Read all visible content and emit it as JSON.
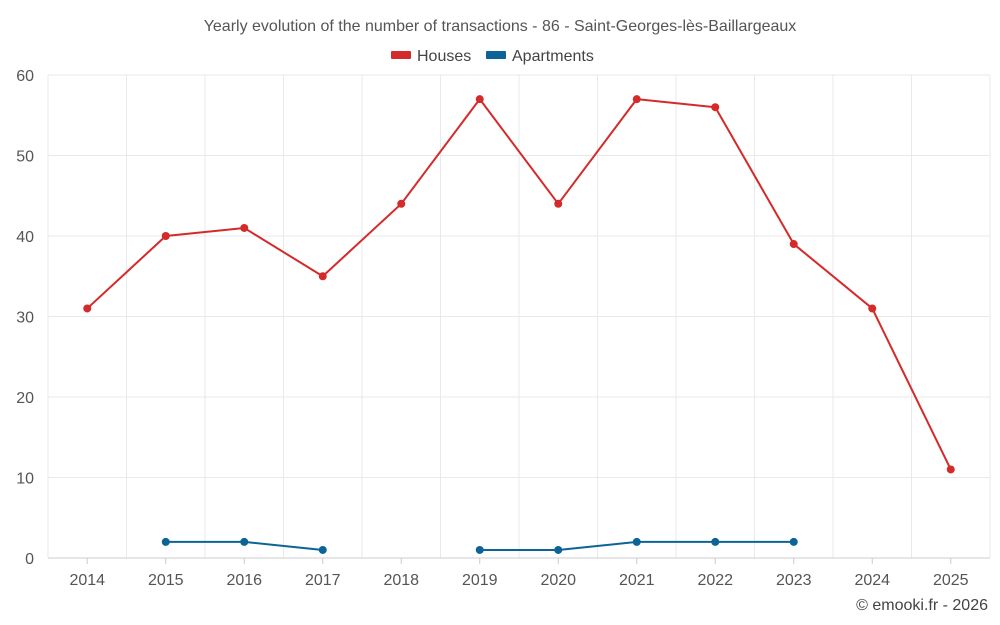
{
  "chart_data": {
    "type": "line",
    "title": "Yearly evolution of the number of transactions - 86 - Saint-Georges-lès-Baillargeaux",
    "categories": [
      "2014",
      "2015",
      "2016",
      "2017",
      "2018",
      "2019",
      "2020",
      "2021",
      "2022",
      "2023",
      "2024",
      "2025"
    ],
    "series": [
      {
        "name": "Houses",
        "color": "#d42a2a",
        "values": [
          31,
          40,
          41,
          35,
          44,
          57,
          44,
          57,
          56,
          39,
          31,
          11
        ]
      },
      {
        "name": "Apartments",
        "color": "#0c6496",
        "values": [
          null,
          2,
          2,
          1,
          null,
          1,
          1,
          2,
          2,
          2,
          null,
          null
        ]
      }
    ],
    "ylim": [
      0,
      60
    ],
    "yticks": [
      0,
      10,
      20,
      30,
      40,
      50,
      60
    ],
    "xlabel": "",
    "ylabel": "",
    "grid": true,
    "legend_position": "top-center"
  },
  "credit": "© emooki.fr - 2026"
}
